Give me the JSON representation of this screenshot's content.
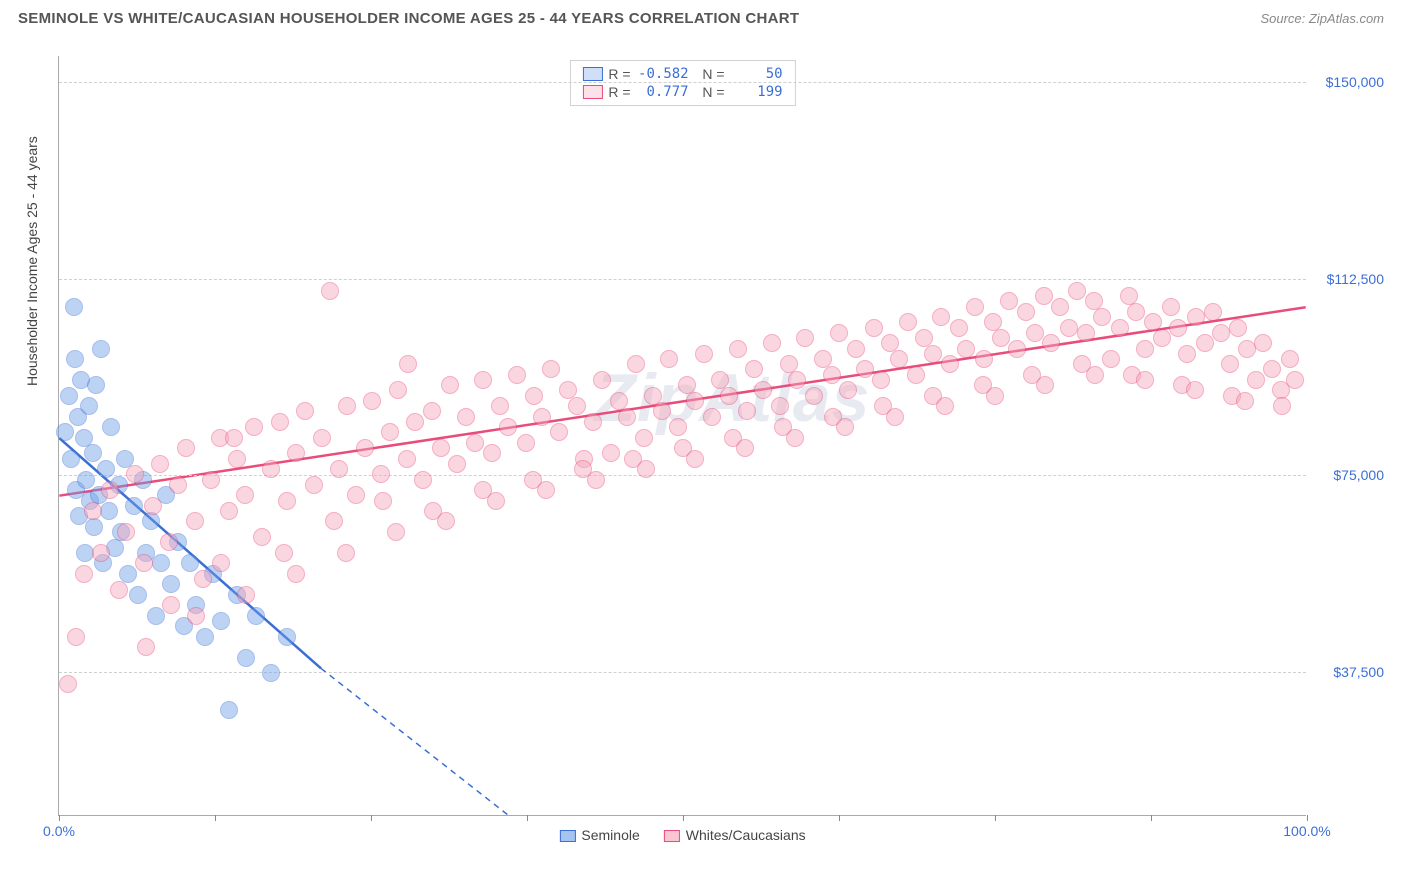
{
  "header": {
    "title": "SEMINOLE VS WHITE/CAUCASIAN HOUSEHOLDER INCOME AGES 25 - 44 YEARS CORRELATION CHART",
    "source": "Source: ZipAtlas.com"
  },
  "watermark": "ZipAtlas",
  "chart": {
    "type": "scatter",
    "ylabel": "Householder Income Ages 25 - 44 years",
    "xlim": [
      0,
      100
    ],
    "ylim": [
      10000,
      155000
    ],
    "xticks": [
      0,
      12.5,
      25,
      37.5,
      50,
      62.5,
      75,
      87.5,
      100
    ],
    "xlabels_shown": {
      "0": "0.0%",
      "100": "100.0%"
    },
    "yticks": [
      37500,
      75000,
      112500,
      150000
    ],
    "ylabels": {
      "37500": "$37,500",
      "75000": "$75,000",
      "112500": "$112,500",
      "150000": "$150,000"
    },
    "background_color": "#ffffff",
    "grid_color": "#d0d0d0",
    "axis_color": "#aaaaaa",
    "label_color": "#3b6fd6",
    "marker_radius": 9,
    "marker_opacity": 0.45,
    "series": [
      {
        "name": "Seminole",
        "fill": "#6f9fe8",
        "stroke": "#3b6fd6",
        "r": -0.582,
        "n": 50,
        "trend": {
          "x1": 0,
          "y1": 82000,
          "x2": 21,
          "y2": 38000,
          "dash_to_x": 36,
          "dash_to_y": 10000
        },
        "points": [
          [
            0.5,
            83000
          ],
          [
            0.8,
            90000
          ],
          [
            1.0,
            78000
          ],
          [
            1.2,
            107000
          ],
          [
            1.3,
            97000
          ],
          [
            1.4,
            72000
          ],
          [
            1.5,
            86000
          ],
          [
            1.6,
            67000
          ],
          [
            1.8,
            93000
          ],
          [
            2.0,
            82000
          ],
          [
            2.1,
            60000
          ],
          [
            2.2,
            74000
          ],
          [
            2.4,
            88000
          ],
          [
            2.5,
            70000
          ],
          [
            2.7,
            79000
          ],
          [
            2.8,
            65000
          ],
          [
            3.0,
            92000
          ],
          [
            3.2,
            71000
          ],
          [
            3.4,
            99000
          ],
          [
            3.5,
            58000
          ],
          [
            3.8,
            76000
          ],
          [
            4.0,
            68000
          ],
          [
            4.2,
            84000
          ],
          [
            4.5,
            61000
          ],
          [
            4.8,
            73000
          ],
          [
            5.0,
            64000
          ],
          [
            5.3,
            78000
          ],
          [
            5.5,
            56000
          ],
          [
            6.0,
            69000
          ],
          [
            6.3,
            52000
          ],
          [
            6.7,
            74000
          ],
          [
            7.0,
            60000
          ],
          [
            7.4,
            66000
          ],
          [
            7.8,
            48000
          ],
          [
            8.2,
            58000
          ],
          [
            8.6,
            71000
          ],
          [
            9.0,
            54000
          ],
          [
            9.5,
            62000
          ],
          [
            10.0,
            46000
          ],
          [
            10.5,
            58000
          ],
          [
            11.0,
            50000
          ],
          [
            11.7,
            44000
          ],
          [
            12.3,
            56000
          ],
          [
            13.0,
            47000
          ],
          [
            13.6,
            30000
          ],
          [
            14.3,
            52000
          ],
          [
            15.0,
            40000
          ],
          [
            15.8,
            48000
          ],
          [
            17.0,
            37000
          ],
          [
            18.3,
            44000
          ]
        ]
      },
      {
        "name": "Whites/Caucasians",
        "fill": "#f5a6bb",
        "stroke": "#e94b7a",
        "r": 0.777,
        "n": 199,
        "trend": {
          "x1": 0,
          "y1": 71000,
          "x2": 100,
          "y2": 107000
        },
        "points": [
          [
            0.7,
            35000
          ],
          [
            1.4,
            44000
          ],
          [
            2.0,
            56000
          ],
          [
            2.7,
            68000
          ],
          [
            3.4,
            60000
          ],
          [
            4.1,
            72000
          ],
          [
            4.8,
            53000
          ],
          [
            5.4,
            64000
          ],
          [
            6.1,
            75000
          ],
          [
            6.8,
            58000
          ],
          [
            7.5,
            69000
          ],
          [
            8.1,
            77000
          ],
          [
            8.8,
            62000
          ],
          [
            9.5,
            73000
          ],
          [
            10.2,
            80000
          ],
          [
            10.9,
            66000
          ],
          [
            11.5,
            55000
          ],
          [
            12.2,
            74000
          ],
          [
            12.9,
            82000
          ],
          [
            13.6,
            68000
          ],
          [
            14.3,
            78000
          ],
          [
            14.9,
            71000
          ],
          [
            15.6,
            84000
          ],
          [
            16.3,
            63000
          ],
          [
            17.0,
            76000
          ],
          [
            17.7,
            85000
          ],
          [
            18.3,
            70000
          ],
          [
            19.0,
            79000
          ],
          [
            19.7,
            87000
          ],
          [
            20.4,
            73000
          ],
          [
            21.1,
            82000
          ],
          [
            21.7,
            110000
          ],
          [
            22.4,
            76000
          ],
          [
            23.1,
            88000
          ],
          [
            23.8,
            71000
          ],
          [
            24.5,
            80000
          ],
          [
            25.1,
            89000
          ],
          [
            25.8,
            75000
          ],
          [
            26.5,
            83000
          ],
          [
            27.2,
            91000
          ],
          [
            27.9,
            78000
          ],
          [
            28.5,
            85000
          ],
          [
            29.2,
            74000
          ],
          [
            29.9,
            87000
          ],
          [
            30.6,
            80000
          ],
          [
            31.3,
            92000
          ],
          [
            31.9,
            77000
          ],
          [
            32.6,
            86000
          ],
          [
            33.3,
            81000
          ],
          [
            34.0,
            93000
          ],
          [
            34.7,
            79000
          ],
          [
            35.3,
            88000
          ],
          [
            36.0,
            84000
          ],
          [
            36.7,
            94000
          ],
          [
            37.4,
            81000
          ],
          [
            38.1,
            90000
          ],
          [
            38.7,
            86000
          ],
          [
            39.4,
            95000
          ],
          [
            40.1,
            83000
          ],
          [
            40.8,
            91000
          ],
          [
            41.5,
            88000
          ],
          [
            42.1,
            78000
          ],
          [
            42.8,
            85000
          ],
          [
            43.5,
            93000
          ],
          [
            44.2,
            79000
          ],
          [
            44.9,
            89000
          ],
          [
            45.5,
            86000
          ],
          [
            46.2,
            96000
          ],
          [
            46.9,
            82000
          ],
          [
            47.6,
            90000
          ],
          [
            48.3,
            87000
          ],
          [
            48.9,
            97000
          ],
          [
            49.6,
            84000
          ],
          [
            50.3,
            92000
          ],
          [
            51.0,
            89000
          ],
          [
            51.7,
            98000
          ],
          [
            52.3,
            86000
          ],
          [
            53.0,
            93000
          ],
          [
            53.7,
            90000
          ],
          [
            54.4,
            99000
          ],
          [
            55.1,
            87000
          ],
          [
            55.7,
            95000
          ],
          [
            56.4,
            91000
          ],
          [
            57.1,
            100000
          ],
          [
            57.8,
            88000
          ],
          [
            58.5,
            96000
          ],
          [
            59.1,
            93000
          ],
          [
            59.8,
            101000
          ],
          [
            60.5,
            90000
          ],
          [
            61.2,
            97000
          ],
          [
            61.9,
            94000
          ],
          [
            62.5,
            102000
          ],
          [
            63.2,
            91000
          ],
          [
            63.9,
            99000
          ],
          [
            64.6,
            95000
          ],
          [
            65.3,
            103000
          ],
          [
            65.9,
            93000
          ],
          [
            66.6,
            100000
          ],
          [
            67.3,
            97000
          ],
          [
            68.0,
            104000
          ],
          [
            68.7,
            94000
          ],
          [
            69.3,
            101000
          ],
          [
            70.0,
            98000
          ],
          [
            70.7,
            105000
          ],
          [
            71.4,
            96000
          ],
          [
            72.1,
            103000
          ],
          [
            72.7,
            99000
          ],
          [
            73.4,
            107000
          ],
          [
            74.1,
            97000
          ],
          [
            74.8,
            104000
          ],
          [
            75.5,
            101000
          ],
          [
            76.1,
            108000
          ],
          [
            76.8,
            99000
          ],
          [
            77.5,
            106000
          ],
          [
            78.2,
            102000
          ],
          [
            78.9,
            109000
          ],
          [
            79.5,
            100000
          ],
          [
            80.2,
            107000
          ],
          [
            80.9,
            103000
          ],
          [
            81.6,
            110000
          ],
          [
            82.3,
            102000
          ],
          [
            82.9,
            108000
          ],
          [
            83.6,
            105000
          ],
          [
            84.3,
            97000
          ],
          [
            85.0,
            103000
          ],
          [
            85.7,
            109000
          ],
          [
            86.3,
            106000
          ],
          [
            87.0,
            99000
          ],
          [
            87.7,
            104000
          ],
          [
            88.4,
            101000
          ],
          [
            89.1,
            107000
          ],
          [
            89.7,
            103000
          ],
          [
            90.4,
            98000
          ],
          [
            91.1,
            105000
          ],
          [
            91.8,
            100000
          ],
          [
            92.5,
            106000
          ],
          [
            93.1,
            102000
          ],
          [
            93.8,
            96000
          ],
          [
            94.5,
            103000
          ],
          [
            95.2,
            99000
          ],
          [
            95.9,
            93000
          ],
          [
            96.5,
            100000
          ],
          [
            97.2,
            95000
          ],
          [
            97.9,
            91000
          ],
          [
            98.6,
            97000
          ],
          [
            99.0,
            93000
          ],
          [
            9.0,
            50000
          ],
          [
            13.0,
            58000
          ],
          [
            18.0,
            60000
          ],
          [
            22.0,
            66000
          ],
          [
            26.0,
            70000
          ],
          [
            30.0,
            68000
          ],
          [
            34.0,
            72000
          ],
          [
            38.0,
            74000
          ],
          [
            42.0,
            76000
          ],
          [
            46.0,
            78000
          ],
          [
            50.0,
            80000
          ],
          [
            54.0,
            82000
          ],
          [
            58.0,
            84000
          ],
          [
            62.0,
            86000
          ],
          [
            66.0,
            88000
          ],
          [
            70.0,
            90000
          ],
          [
            74.0,
            92000
          ],
          [
            78.0,
            94000
          ],
          [
            82.0,
            96000
          ],
          [
            86.0,
            94000
          ],
          [
            90.0,
            92000
          ],
          [
            94.0,
            90000
          ],
          [
            98.0,
            88000
          ],
          [
            7.0,
            42000
          ],
          [
            11.0,
            48000
          ],
          [
            15.0,
            52000
          ],
          [
            19.0,
            56000
          ],
          [
            23.0,
            60000
          ],
          [
            27.0,
            64000
          ],
          [
            31.0,
            66000
          ],
          [
            35.0,
            70000
          ],
          [
            39.0,
            72000
          ],
          [
            43.0,
            74000
          ],
          [
            47.0,
            76000
          ],
          [
            51.0,
            78000
          ],
          [
            55.0,
            80000
          ],
          [
            59.0,
            82000
          ],
          [
            63.0,
            84000
          ],
          [
            67.0,
            86000
          ],
          [
            71.0,
            88000
          ],
          [
            75.0,
            90000
          ],
          [
            79.0,
            92000
          ],
          [
            83.0,
            94000
          ],
          [
            87.0,
            93000
          ],
          [
            91.0,
            91000
          ],
          [
            95.0,
            89000
          ],
          [
            14.0,
            82000
          ],
          [
            28.0,
            96000
          ]
        ]
      }
    ],
    "legend_bottom": [
      {
        "label": "Seminole",
        "fill": "#a6c4f0",
        "stroke": "#3b6fd6"
      },
      {
        "label": "Whites/Caucasians",
        "fill": "#f8c6d3",
        "stroke": "#e94b7a"
      }
    ]
  }
}
